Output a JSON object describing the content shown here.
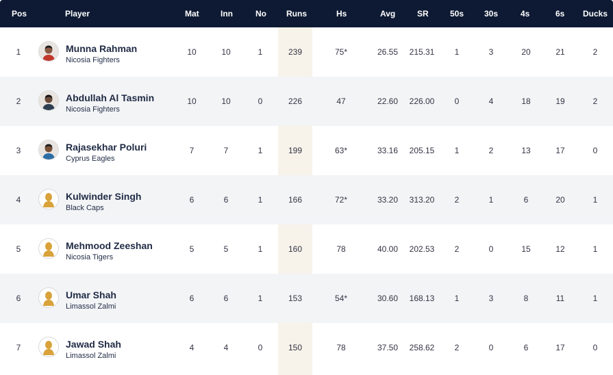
{
  "header": {
    "pos": "Pos",
    "player": "Player",
    "mat": "Mat",
    "inn": "Inn",
    "no": "No",
    "runs": "Runs",
    "hs": "Hs",
    "avg": "Avg",
    "sr": "SR",
    "fifties": "50s",
    "thirties": "30s",
    "fours": "4s",
    "sixes": "6s",
    "ducks": "Ducks"
  },
  "rows": [
    {
      "pos": "1",
      "name": "Munna Rahman",
      "team": "Nicosia Fighters",
      "mat": "10",
      "inn": "10",
      "no": "1",
      "runs": "239",
      "hs": "75*",
      "avg": "26.55",
      "sr": "215.31",
      "fifties": "1",
      "thirties": "3",
      "fours": "20",
      "sixes": "21",
      "ducks": "2",
      "avatar": "photo"
    },
    {
      "pos": "2",
      "name": "Abdullah Al Tasmin",
      "team": "Nicosia Fighters",
      "mat": "10",
      "inn": "10",
      "no": "0",
      "runs": "226",
      "hs": "47",
      "avg": "22.60",
      "sr": "226.00",
      "fifties": "0",
      "thirties": "4",
      "fours": "18",
      "sixes": "19",
      "ducks": "2",
      "avatar": "photo"
    },
    {
      "pos": "3",
      "name": "Rajasekhar Poluri",
      "team": "Cyprus Eagles",
      "mat": "7",
      "inn": "7",
      "no": "1",
      "runs": "199",
      "hs": "63*",
      "avg": "33.16",
      "sr": "205.15",
      "fifties": "1",
      "thirties": "2",
      "fours": "13",
      "sixes": "17",
      "ducks": "0",
      "avatar": "photo"
    },
    {
      "pos": "4",
      "name": "Kulwinder Singh",
      "team": "Black Caps",
      "mat": "6",
      "inn": "6",
      "no": "1",
      "runs": "166",
      "hs": "72*",
      "avg": "33.20",
      "sr": "313.20",
      "fifties": "2",
      "thirties": "1",
      "fours": "6",
      "sixes": "20",
      "ducks": "1",
      "avatar": "placeholder"
    },
    {
      "pos": "5",
      "name": "Mehmood Zeeshan",
      "team": "Nicosia Tigers",
      "mat": "5",
      "inn": "5",
      "no": "1",
      "runs": "160",
      "hs": "78",
      "avg": "40.00",
      "sr": "202.53",
      "fifties": "2",
      "thirties": "0",
      "fours": "15",
      "sixes": "12",
      "ducks": "1",
      "avatar": "placeholder"
    },
    {
      "pos": "6",
      "name": "Umar Shah",
      "team": "Limassol Zalmi",
      "mat": "6",
      "inn": "6",
      "no": "1",
      "runs": "153",
      "hs": "54*",
      "avg": "30.60",
      "sr": "168.13",
      "fifties": "1",
      "thirties": "3",
      "fours": "8",
      "sixes": "11",
      "ducks": "1",
      "avatar": "placeholder"
    },
    {
      "pos": "7",
      "name": "Jawad Shah",
      "team": "Limassol Zalmi",
      "mat": "4",
      "inn": "4",
      "no": "0",
      "runs": "150",
      "hs": "78",
      "avg": "37.50",
      "sr": "258.62",
      "fifties": "2",
      "thirties": "0",
      "fours": "6",
      "sixes": "17",
      "ducks": "0",
      "avatar": "placeholder"
    }
  ],
  "colors": {
    "header_bg": "#0e1a33",
    "runs_highlight": "#f7f3ea",
    "alt_row": "#f3f4f6",
    "placeholder_avatar": "#d9a23a"
  },
  "icons": {
    "photo_avatar": "player-photo-icon",
    "placeholder_avatar": "player-silhouette-icon"
  }
}
